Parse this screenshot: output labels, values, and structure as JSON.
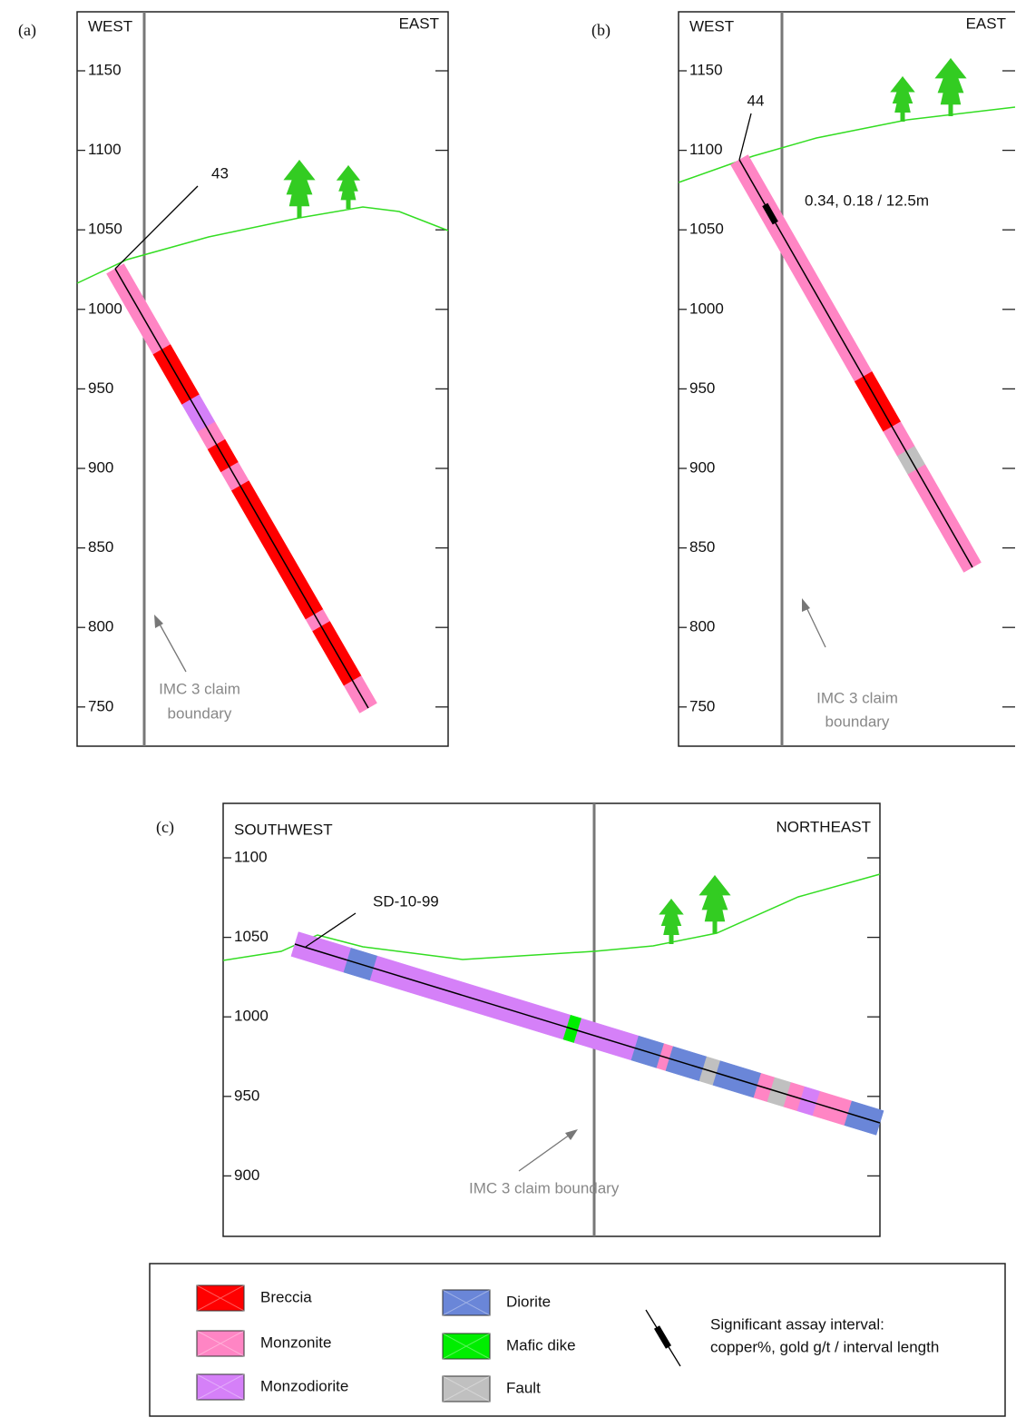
{
  "panels": [
    {
      "label": "(a)",
      "left_label": "WEST",
      "right_label": "EAST",
      "elevations": [
        "1150",
        "1100",
        "1050",
        "1000",
        "950",
        "900",
        "850",
        "800",
        "750"
      ],
      "hole": "43",
      "boundary": [
        "IMC 3 claim",
        "boundary"
      ]
    },
    {
      "label": "(b)",
      "left_label": "WEST",
      "right_label": "EAST",
      "elevations": [
        "1150",
        "1100",
        "1050",
        "1000",
        "950",
        "900",
        "850",
        "800",
        "750"
      ],
      "hole": "44",
      "assay": "0.34, 0.18 / 12.5m",
      "boundary": [
        "IMC 3 claim",
        "boundary"
      ]
    },
    {
      "label": "(c)",
      "left_label": "SOUTHWEST",
      "right_label": "NORTHEAST",
      "elevations": [
        "1100",
        "1050",
        "1000",
        "950",
        "900"
      ],
      "hole": "SD-10-99",
      "boundary": [
        "IMC 3 claim boundary"
      ]
    }
  ],
  "legend": {
    "items": [
      {
        "label": "Breccia",
        "color": "#ff0000"
      },
      {
        "label": "Monzonite",
        "color": "#ff85c4"
      },
      {
        "label": "Monzodiorite",
        "color": "#d580f8"
      },
      {
        "label": "Diorite",
        "color": "#6a86d8"
      },
      {
        "label": "Mafic dike",
        "color": "#00ee00"
      },
      {
        "label": "Fault",
        "color": "#c0c0c0"
      }
    ],
    "assay": [
      "Significant assay interval:",
      "copper%, gold g/t / interval length"
    ]
  }
}
